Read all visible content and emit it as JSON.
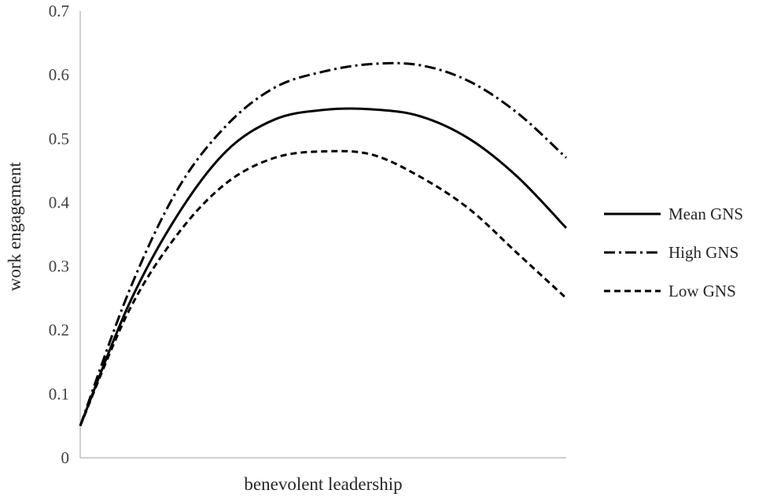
{
  "chart_data": {
    "type": "line",
    "title": "",
    "xlabel": "benevolent leadership",
    "ylabel": "work engagement",
    "ylim": [
      0,
      0.7
    ],
    "yticks": [
      0,
      0.1,
      0.2,
      0.3,
      0.4,
      0.5,
      0.6,
      0.7
    ],
    "ytick_labels": [
      "0",
      "0.1",
      "0.2",
      "0.3",
      "0.4",
      "0.5",
      "0.6",
      "0.7"
    ],
    "x_ticks_shown": false,
    "grid": false,
    "legend_position": "right",
    "x": [
      0,
      0.1,
      0.2,
      0.3,
      0.4,
      0.5,
      0.6,
      0.7,
      0.8,
      0.9,
      1.0
    ],
    "series": [
      {
        "name": "Mean GNS",
        "style": "solid",
        "color": "#000000",
        "values": [
          0.05,
          0.24,
          0.38,
          0.48,
          0.53,
          0.545,
          0.546,
          0.535,
          0.5,
          0.44,
          0.36
        ]
      },
      {
        "name": "High GNS",
        "style": "dash-dot",
        "color": "#000000",
        "values": [
          0.05,
          0.26,
          0.42,
          0.52,
          0.58,
          0.605,
          0.617,
          0.615,
          0.59,
          0.54,
          0.47
        ]
      },
      {
        "name": "Low GNS",
        "style": "dashed",
        "color": "#000000",
        "values": [
          0.05,
          0.23,
          0.35,
          0.43,
          0.47,
          0.48,
          0.475,
          0.44,
          0.39,
          0.32,
          0.25
        ]
      }
    ]
  }
}
